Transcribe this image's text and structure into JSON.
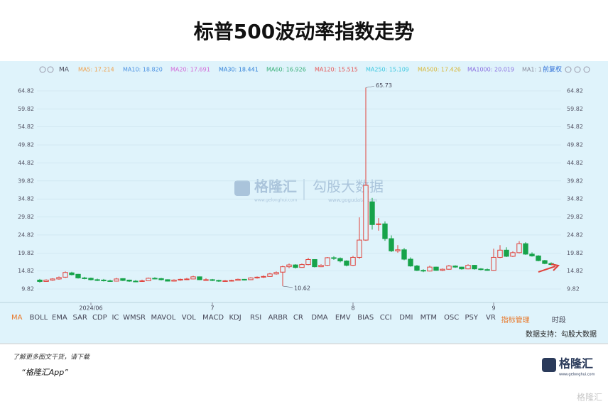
{
  "title": "标普500波动率指数走势",
  "toolbar": {
    "mode": "MA",
    "legend": [
      {
        "label": "MA5: 17.214",
        "color": "#f0a04b"
      },
      {
        "label": "MA10: 18.820",
        "color": "#4a90e2"
      },
      {
        "label": "MA20: 17.691",
        "color": "#d36bd8"
      },
      {
        "label": "MA30: 18.441",
        "color": "#2f7fd8"
      },
      {
        "label": "MA60: 16.926",
        "color": "#3bb07a"
      },
      {
        "label": "MA120: 15.515",
        "color": "#e65a5a"
      },
      {
        "label": "MA250: 15.109",
        "color": "#3cc8e0"
      },
      {
        "label": "MA500: 17.426",
        "color": "#d8b83a"
      },
      {
        "label": "MA1000: 20.019",
        "color": "#8b6fe0"
      },
      {
        "label": "MA1: 1",
        "color": "#889"
      }
    ],
    "adjust": "前复权"
  },
  "chart_data": {
    "type": "candlestick",
    "categories": [
      null,
      null,
      null,
      null,
      null,
      null,
      null,
      null,
      "2024/06",
      null,
      null,
      null,
      null,
      null,
      null,
      null,
      null,
      null,
      null,
      null,
      null,
      null,
      null,
      null,
      null,
      null,
      null,
      "7",
      null,
      null,
      null,
      null,
      null,
      null,
      null,
      null,
      null,
      null,
      null,
      null,
      null,
      null,
      null,
      null,
      null,
      null,
      null,
      null,
      null,
      "8",
      null,
      null,
      null,
      null,
      null,
      null,
      null,
      null,
      null,
      null,
      null,
      null,
      null,
      null,
      null,
      null,
      null,
      null,
      null,
      null,
      null,
      "9",
      null,
      null,
      null,
      null,
      null,
      null,
      null,
      null,
      null
    ],
    "open": [
      12.3,
      11.9,
      12.3,
      12.6,
      13.1,
      14.3,
      13.9,
      12.9,
      12.8,
      12.4,
      12.3,
      12.1,
      12.0,
      12.7,
      12.3,
      12.0,
      11.9,
      12.1,
      12.8,
      12.7,
      12.4,
      12.0,
      12.3,
      12.5,
      12.6,
      13.2,
      12.4,
      12.4,
      12.2,
      12.0,
      12.1,
      12.2,
      12.5,
      12.4,
      12.9,
      13.1,
      13.3,
      14.0,
      14.5,
      16.0,
      16.5,
      15.8,
      16.6,
      18.0,
      16.0,
      16.4,
      18.5,
      18.3,
      17.6,
      16.4,
      18.6,
      23.4,
      34.0,
      27.7,
      27.9,
      23.8,
      20.4,
      20.7,
      18.1,
      16.2,
      15.0,
      14.8,
      15.9,
      15.0,
      15.3,
      16.2,
      15.9,
      15.4,
      16.4,
      15.4,
      15.2,
      15.0,
      18.6,
      20.6,
      18.9,
      19.9,
      22.4,
      19.5,
      19.0,
      17.7,
      16.9
    ],
    "high": [
      12.6,
      12.5,
      12.8,
      13.3,
      14.7,
      14.6,
      14.0,
      13.2,
      13.0,
      12.7,
      12.6,
      12.4,
      12.9,
      12.8,
      12.4,
      12.3,
      12.4,
      13.0,
      13.1,
      12.9,
      12.5,
      12.5,
      12.7,
      12.9,
      13.5,
      13.3,
      12.8,
      12.6,
      12.4,
      12.3,
      12.4,
      12.7,
      12.6,
      13.1,
      13.3,
      13.6,
      14.3,
      14.7,
      16.3,
      16.9,
      16.7,
      16.9,
      18.5,
      18.1,
      16.7,
      18.7,
      18.9,
      18.6,
      17.8,
      19.0,
      29.7,
      65.73,
      35.1,
      29.5,
      28.6,
      24.7,
      22.0,
      21.2,
      18.6,
      16.5,
      15.3,
      16.3,
      16.0,
      15.5,
      16.5,
      16.4,
      16.0,
      16.7,
      16.5,
      15.6,
      15.5,
      21.0,
      22.0,
      21.4,
      20.3,
      23.1,
      22.8,
      20.0,
      19.2,
      17.9,
      17.2
    ],
    "low": [
      11.6,
      11.8,
      12.1,
      12.4,
      12.9,
      13.6,
      12.7,
      12.5,
      12.2,
      12.0,
      11.9,
      11.8,
      11.9,
      12.0,
      11.8,
      11.7,
      11.8,
      12.0,
      12.5,
      12.2,
      11.9,
      11.9,
      12.1,
      12.3,
      12.5,
      12.3,
      12.2,
      12.0,
      11.8,
      11.9,
      11.9,
      12.1,
      12.2,
      12.3,
      12.7,
      12.9,
      13.2,
      13.8,
      10.62,
      15.6,
      15.5,
      15.7,
      16.4,
      15.8,
      15.9,
      16.2,
      17.9,
      17.2,
      16.1,
      16.2,
      18.2,
      23.2,
      26.3,
      26.0,
      23.2,
      20.1,
      19.9,
      17.8,
      16.0,
      14.8,
      14.5,
      14.7,
      14.9,
      14.8,
      15.2,
      15.7,
      15.2,
      15.3,
      15.2,
      15.0,
      14.9,
      14.9,
      18.4,
      18.7,
      18.7,
      19.7,
      19.3,
      18.8,
      17.5,
      16.7,
      16.4
    ],
    "close": [
      11.9,
      12.3,
      12.6,
      13.0,
      14.4,
      13.8,
      12.9,
      12.7,
      12.4,
      12.2,
      12.1,
      12.0,
      12.6,
      12.2,
      12.0,
      11.9,
      12.1,
      12.8,
      12.7,
      12.4,
      12.0,
      12.3,
      12.5,
      12.6,
      13.2,
      12.4,
      12.4,
      12.2,
      12.0,
      12.1,
      12.2,
      12.5,
      12.4,
      12.9,
      13.1,
      13.3,
      14.0,
      14.4,
      16.0,
      16.5,
      15.8,
      16.6,
      18.0,
      16.0,
      16.4,
      18.5,
      18.3,
      17.6,
      16.4,
      18.6,
      23.4,
      38.6,
      27.7,
      27.9,
      23.8,
      20.4,
      20.7,
      18.1,
      16.2,
      15.0,
      14.8,
      15.9,
      15.0,
      15.3,
      16.2,
      15.9,
      15.4,
      16.4,
      15.4,
      15.2,
      15.0,
      18.6,
      20.6,
      18.9,
      19.9,
      22.4,
      19.5,
      19.0,
      17.7,
      16.9,
      16.6
    ],
    "up_color": "#e0413a",
    "down_color": "#17a34a",
    "ylim": [
      6.27,
      66.79
    ],
    "yticks": [
      9.82,
      14.82,
      19.82,
      24.82,
      29.82,
      34.82,
      39.82,
      44.82,
      49.82,
      54.82,
      59.82,
      64.82
    ],
    "grid": true
  },
  "indicators": [
    "MA",
    "BOLL",
    "EMA",
    "SAR",
    "CDP",
    "IC",
    "WMSR",
    "MAVOL",
    "VOL",
    "MACD",
    "KDJ",
    "RSI",
    "ARBR",
    "CR",
    "DMA",
    "EMV",
    "BIAS",
    "CCI",
    "DMI",
    "MTM",
    "OSC",
    "PSY",
    "VR",
    "指标管理",
    "时段"
  ],
  "source": "数据支持：勾股大数据",
  "watermark": {
    "brand": "格隆汇",
    "site": "www.gelonghui.com",
    "data": "勾股大数据",
    "data_site": "www.gogudata.com"
  },
  "footer": {
    "line1": "了解更多图文干货，请下载",
    "line2": "“格隆汇App”",
    "logo": "格隆汇",
    "logo_site": "www.gelonghui.com",
    "corner": "格隆汇"
  }
}
